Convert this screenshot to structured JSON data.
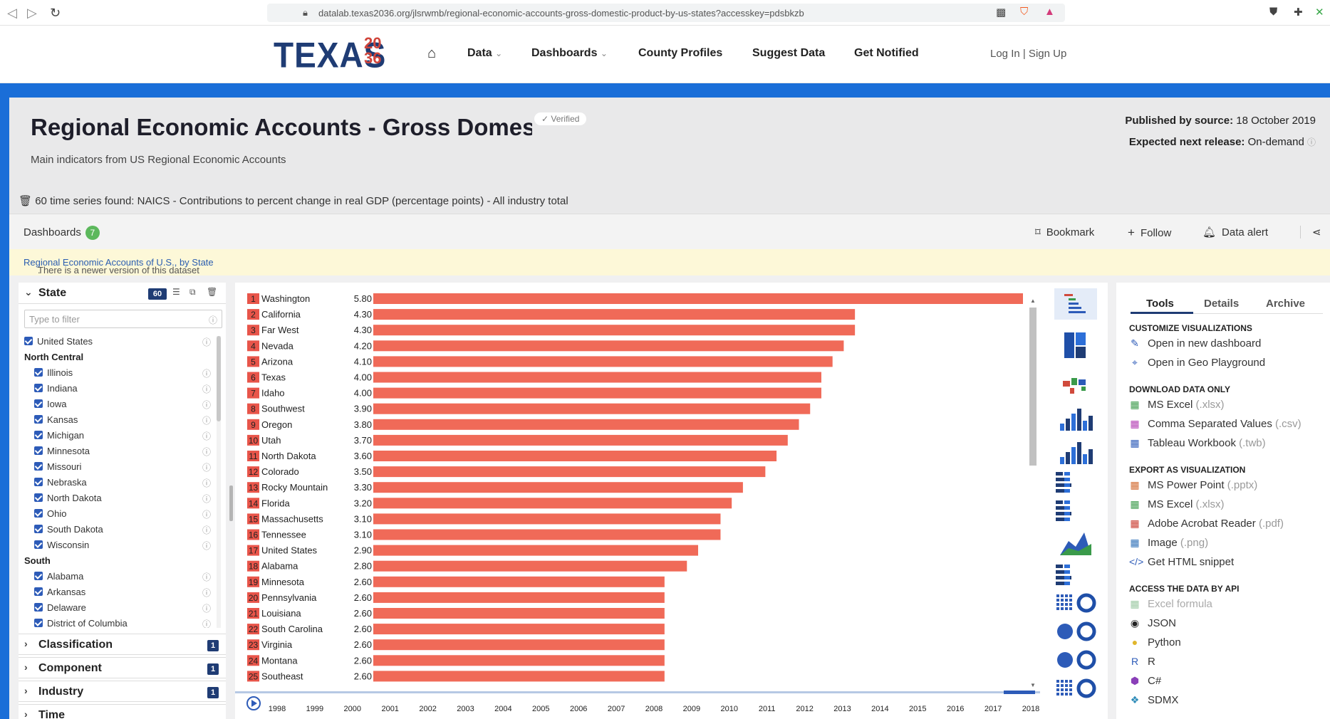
{
  "browser": {
    "url": "datalab.texas2036.org/jlsrwmb/regional-economic-accounts-gross-domestic-product-by-us-states?accesskey=pdsbkzb"
  },
  "site": {
    "logo_text": "TEXAS",
    "logo_numbers": "2036",
    "nav": [
      "Data",
      "Dashboards",
      "County Profiles",
      "Suggest Data",
      "Get Notified"
    ],
    "login": "Log In | Sign Up"
  },
  "header": {
    "title": "Regional Economic Accounts - Gross Domestic Product by US States",
    "verified": "✓ Verified",
    "subtitle": "Main indicators from US Regional Economic Accounts",
    "published_label": "Published by source:",
    "published_value": "18 October 2019",
    "next_label": "Expected next release:",
    "next_value": "On-demand",
    "series_found": "60 time series found: NAICS - Contributions to percent change in real GDP (percentage points) - All industry total"
  },
  "toolbar": {
    "dashboards_label": "Dashboards",
    "dashboards_count": "7",
    "bookmark": "Bookmark",
    "follow": "Follow",
    "data_alert": "Data alert"
  },
  "notice": {
    "text": "There is a newer version of this dataset available. Take a look at ",
    "link": "Regional Economic Accounts of U.S., by State",
    "end": "."
  },
  "filters": {
    "state_label": "State",
    "state_count": "60",
    "filter_placeholder": "Type to filter",
    "tree": [
      {
        "type": "item",
        "label": "United States",
        "indent": 0
      },
      {
        "type": "group",
        "label": "North Central"
      },
      {
        "type": "item",
        "label": "Illinois",
        "indent": 1
      },
      {
        "type": "item",
        "label": "Indiana",
        "indent": 1
      },
      {
        "type": "item",
        "label": "Iowa",
        "indent": 1
      },
      {
        "type": "item",
        "label": "Kansas",
        "indent": 1
      },
      {
        "type": "item",
        "label": "Michigan",
        "indent": 1
      },
      {
        "type": "item",
        "label": "Minnesota",
        "indent": 1
      },
      {
        "type": "item",
        "label": "Missouri",
        "indent": 1
      },
      {
        "type": "item",
        "label": "Nebraska",
        "indent": 1
      },
      {
        "type": "item",
        "label": "North Dakota",
        "indent": 1
      },
      {
        "type": "item",
        "label": "Ohio",
        "indent": 1
      },
      {
        "type": "item",
        "label": "South Dakota",
        "indent": 1
      },
      {
        "type": "item",
        "label": "Wisconsin",
        "indent": 1
      },
      {
        "type": "group",
        "label": "South"
      },
      {
        "type": "item",
        "label": "Alabama",
        "indent": 1
      },
      {
        "type": "item",
        "label": "Arkansas",
        "indent": 1
      },
      {
        "type": "item",
        "label": "Delaware",
        "indent": 1
      },
      {
        "type": "item",
        "label": "District of Columbia",
        "indent": 1
      }
    ],
    "sections": [
      {
        "label": "Classification",
        "count": "1"
      },
      {
        "label": "Component",
        "count": "1"
      },
      {
        "label": "Industry",
        "count": "1"
      },
      {
        "label": "Time",
        "count": ""
      }
    ]
  },
  "chart_data": {
    "type": "bar",
    "orientation": "horizontal",
    "bar_color": "#f06a58",
    "rank_color": "#e8554a",
    "categories": [
      "Washington",
      "California",
      "Far West",
      "Nevada",
      "Arizona",
      "Texas",
      "Idaho",
      "Southwest",
      "Oregon",
      "Utah",
      "North Dakota",
      "Colorado",
      "Rocky Mountain",
      "Florida",
      "Massachusetts",
      "Tennessee",
      "United States",
      "Alabama",
      "Minnesota",
      "Pennsylvania",
      "Louisiana",
      "South Carolina",
      "Virginia",
      "Montana",
      "Southeast"
    ],
    "values": [
      5.8,
      4.3,
      4.3,
      4.2,
      4.1,
      4.0,
      4.0,
      3.9,
      3.8,
      3.7,
      3.6,
      3.5,
      3.3,
      3.2,
      3.1,
      3.1,
      2.9,
      2.8,
      2.6,
      2.6,
      2.6,
      2.6,
      2.6,
      2.6,
      2.6
    ],
    "value_labels": [
      "5.80",
      "4.30",
      "4.30",
      "4.20",
      "4.10",
      "4.00",
      "4.00",
      "3.90",
      "3.80",
      "3.70",
      "3.60",
      "3.50",
      "3.30",
      "3.20",
      "3.10",
      "3.10",
      "2.90",
      "2.80",
      "2.60",
      "2.60",
      "2.60",
      "2.60",
      "2.60",
      "2.60",
      "2.60"
    ],
    "xlim": [
      0,
      5.8
    ],
    "timeline": [
      "1998",
      "1999",
      "2000",
      "2001",
      "2002",
      "2003",
      "2004",
      "2005",
      "2006",
      "2007",
      "2008",
      "2009",
      "2010",
      "2011",
      "2012",
      "2013",
      "2014",
      "2015",
      "2016",
      "2017",
      "2018"
    ],
    "timeline_selected": "2018"
  },
  "tools": {
    "tabs": [
      "Tools",
      "Details",
      "Archive"
    ],
    "sections": [
      {
        "title": "CUSTOMIZE VISUALIZATIONS",
        "items": [
          {
            "label": "Open in new dashboard",
            "ext": "",
            "icon": "✎",
            "color": "#2d5bb8"
          },
          {
            "label": "Open in Geo Playground",
            "ext": "",
            "icon": "⌖",
            "color": "#2d5bb8"
          }
        ]
      },
      {
        "title": "DOWNLOAD DATA ONLY",
        "items": [
          {
            "label": "MS Excel",
            "ext": "(.xlsx)",
            "icon": "▦",
            "color": "#3a9a4a"
          },
          {
            "label": "Comma Separated Values",
            "ext": "(.csv)",
            "icon": "▦",
            "color": "#b33cb3"
          },
          {
            "label": "Tableau Workbook",
            "ext": "(.twb)",
            "icon": "▦",
            "color": "#2d5bb8"
          }
        ]
      },
      {
        "title": "EXPORT AS VISUALIZATION",
        "items": [
          {
            "label": "MS Power Point",
            "ext": "(.pptx)",
            "icon": "▦",
            "color": "#d2692e"
          },
          {
            "label": "MS Excel",
            "ext": "(.xlsx)",
            "icon": "▦",
            "color": "#3a9a4a"
          },
          {
            "label": "Adobe Acrobat Reader",
            "ext": "(.pdf)",
            "icon": "▦",
            "color": "#c8382c"
          },
          {
            "label": "Image",
            "ext": "(.png)",
            "icon": "▦",
            "color": "#2d6fb8"
          },
          {
            "label": "Get HTML snippet",
            "ext": "",
            "icon": "</>",
            "color": "#2d5bb8"
          }
        ]
      },
      {
        "title": "ACCESS THE DATA BY API",
        "items": [
          {
            "label": "Excel formula",
            "ext": "",
            "icon": "▦",
            "color": "#9bc9a3",
            "disabled": true
          },
          {
            "label": "JSON",
            "ext": "",
            "icon": "◉",
            "color": "#222"
          },
          {
            "label": "Python",
            "ext": "",
            "icon": "●",
            "color": "#e0b62c"
          },
          {
            "label": "R",
            "ext": "",
            "icon": "R",
            "color": "#2d5bb8"
          },
          {
            "label": "C#",
            "ext": "",
            "icon": "⬢",
            "color": "#8a3fb8"
          },
          {
            "label": "SDMX",
            "ext": "",
            "icon": "❖",
            "color": "#2d8bb8"
          }
        ]
      }
    ]
  }
}
